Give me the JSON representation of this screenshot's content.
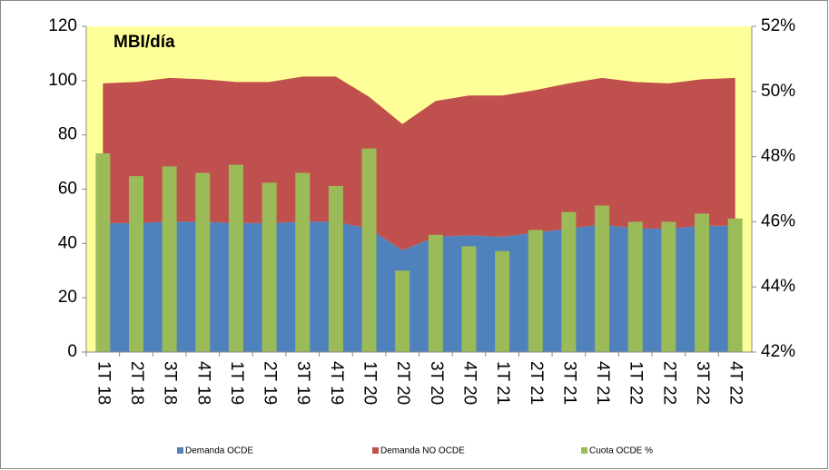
{
  "chart_data": {
    "type": "stacked-area-bar",
    "title": "MBI/día",
    "categories": [
      "1T 18",
      "2T 18",
      "3T 18",
      "4T 18",
      "1T 19",
      "2T 19",
      "3T 19",
      "4T 19",
      "1T 20",
      "2T 20",
      "3T 20",
      "4T 20",
      "1T 21",
      "2T 21",
      "3T 21",
      "4T 21",
      "1T 22",
      "2T 22",
      "3T 22",
      "4T 22"
    ],
    "series": [
      {
        "name": "Demanda OCDE",
        "color": "#4f81bd",
        "kind": "area",
        "values": [
          47.5,
          47.5,
          48,
          48,
          47.5,
          47.5,
          48,
          48,
          45.5,
          37.5,
          42.5,
          43,
          42.5,
          44,
          45.5,
          47,
          45.5,
          45.5,
          46.5,
          46.5
        ]
      },
      {
        "name": "Demanda NO OCDE",
        "color": "#c0504d",
        "kind": "area",
        "values": [
          51.5,
          52,
          53,
          52.5,
          52,
          52,
          53.5,
          53.5,
          48.5,
          46.5,
          50,
          51.5,
          52,
          52.5,
          53.5,
          54,
          54,
          53.5,
          54,
          54.5
        ]
      },
      {
        "name": "Cuota OCDE %",
        "color": "#9bbb59",
        "kind": "bar",
        "axis": "y2",
        "values": [
          48.1,
          47.4,
          47.7,
          47.5,
          47.75,
          47.2,
          47.5,
          47.1,
          48.25,
          44.5,
          45.6,
          45.25,
          45.1,
          45.75,
          46.3,
          46.5,
          46,
          46,
          46.25,
          46.1
        ]
      }
    ],
    "ylim": [
      0,
      120
    ],
    "yticks": [
      0,
      20,
      40,
      60,
      80,
      100,
      120
    ],
    "y2lim": [
      42,
      52
    ],
    "y2ticks": [
      {
        "value": 42,
        "label": "42%"
      },
      {
        "value": 44,
        "label": "44%"
      },
      {
        "value": 46,
        "label": "46%"
      },
      {
        "value": 48,
        "label": "48%"
      },
      {
        "value": 50,
        "label": "50%"
      },
      {
        "value": 52,
        "label": "52%"
      }
    ],
    "background": "#ffff99"
  }
}
